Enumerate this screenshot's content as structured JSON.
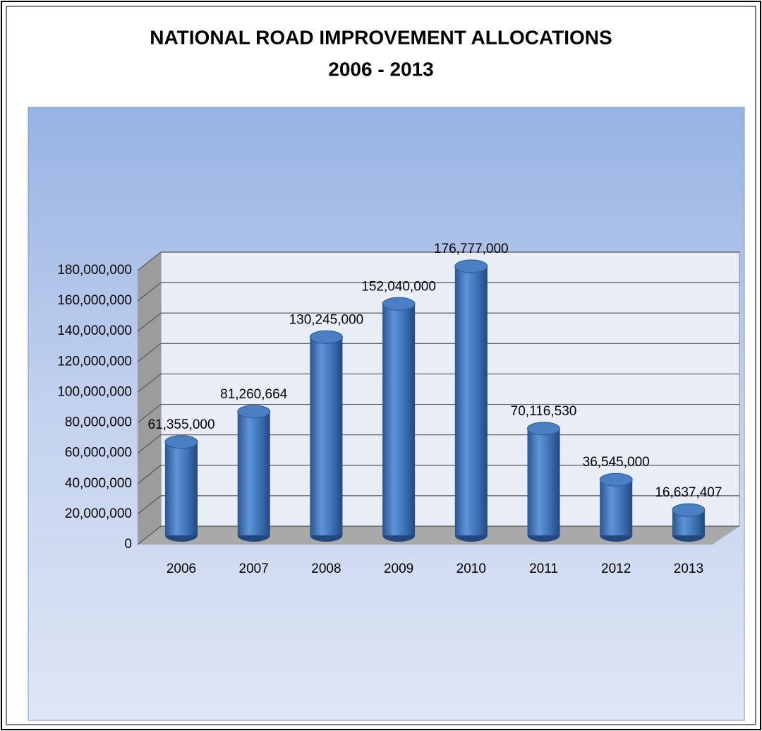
{
  "chart_data": {
    "type": "bar",
    "title": "NATIONAL ROAD IMPROVEMENT ALLOCATIONS",
    "subtitle": "2006 - 2013",
    "categories": [
      "2006",
      "2007",
      "2008",
      "2009",
      "2010",
      "2011",
      "2012",
      "2013"
    ],
    "values": [
      61355000,
      81260664,
      130245000,
      152040000,
      176777000,
      70116530,
      36545000,
      16637407
    ],
    "value_labels": [
      "61,355,000",
      "81,260,664",
      "130,245,000",
      "152,040,000",
      "176,777,000",
      "70,116,530",
      "36,545,000",
      "16,637,407"
    ],
    "color": "#4a7fc4",
    "ylim": [
      0,
      180000000
    ],
    "yticks": [
      0,
      {
        "value": 20000000,
        "label": "20,000,000"
      },
      {
        "value": 40000000,
        "label": "40,000,000"
      },
      {
        "value": 60000000,
        "label": "60,000,000"
      },
      {
        "value": 80000000,
        "label": "80,000,000"
      },
      {
        "value": 100000000,
        "label": "100,000,000"
      },
      {
        "value": 120000000,
        "label": "120,000,000"
      },
      {
        "value": 140000000,
        "label": "140,000,000"
      },
      {
        "value": 160000000,
        "label": "160,000,000"
      },
      {
        "value": 180000000,
        "label": "180,000,000"
      }
    ],
    "grid": true
  }
}
